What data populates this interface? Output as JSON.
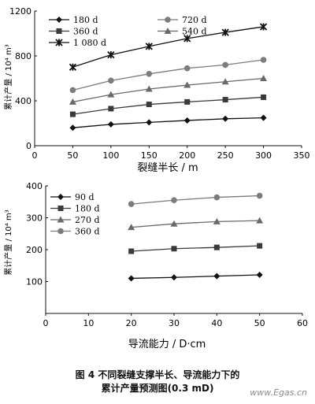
{
  "chart_data": [
    {
      "type": "line",
      "xlabel": "裂缝半长 / m",
      "ylabel": "累计产量 / 10⁴ m³",
      "xlim": [
        0,
        350
      ],
      "ylim": [
        0,
        1200
      ],
      "xticks": [
        "0",
        "50",
        "100",
        "150",
        "200",
        "250",
        "300",
        "350"
      ],
      "yticks": [
        "0",
        "400",
        "800",
        "1200"
      ],
      "legend_position": "top-left",
      "x": [
        50,
        100,
        150,
        200,
        250,
        300
      ],
      "series": [
        {
          "name": "180 d",
          "marker": "diamond",
          "values": [
            160,
            190,
            208,
            225,
            240,
            248
          ]
        },
        {
          "name": "360 d",
          "marker": "square",
          "values": [
            280,
            330,
            368,
            390,
            410,
            432
          ]
        },
        {
          "name": "540 d",
          "marker": "triangle",
          "values": [
            390,
            455,
            505,
            540,
            570,
            600
          ]
        },
        {
          "name": "720 d",
          "marker": "circle",
          "values": [
            495,
            580,
            640,
            690,
            720,
            765
          ]
        },
        {
          "name": "1 080 d",
          "marker": "star",
          "values": [
            700,
            810,
            885,
            955,
            1010,
            1060
          ]
        }
      ]
    },
    {
      "type": "line",
      "xlabel": "导流能力 / D·cm",
      "ylabel": "累计产量 / 10⁴ m³",
      "xlim": [
        0,
        60
      ],
      "ylim": [
        0,
        400
      ],
      "xticks": [
        "0",
        "10",
        "20",
        "30",
        "40",
        "50",
        "60"
      ],
      "yticks": [
        "100",
        "200",
        "300",
        "400"
      ],
      "legend_position": "top-left",
      "x": [
        20,
        30,
        40,
        50
      ],
      "series": [
        {
          "name": "90 d",
          "marker": "diamond",
          "values": [
            110,
            113,
            117,
            121
          ]
        },
        {
          "name": "180 d",
          "marker": "square",
          "values": [
            195,
            203,
            207,
            212
          ]
        },
        {
          "name": "270 d",
          "marker": "triangle",
          "values": [
            270,
            281,
            288,
            291
          ]
        },
        {
          "name": "360 d",
          "marker": "circle",
          "values": [
            343,
            355,
            364,
            369
          ]
        }
      ]
    }
  ],
  "caption": {
    "line1": "图 4   不同裂缝支撑半长、导流能力下的",
    "line2": "累计产量预测图(0.3 mD)"
  },
  "watermark": "www.Egas.cn"
}
